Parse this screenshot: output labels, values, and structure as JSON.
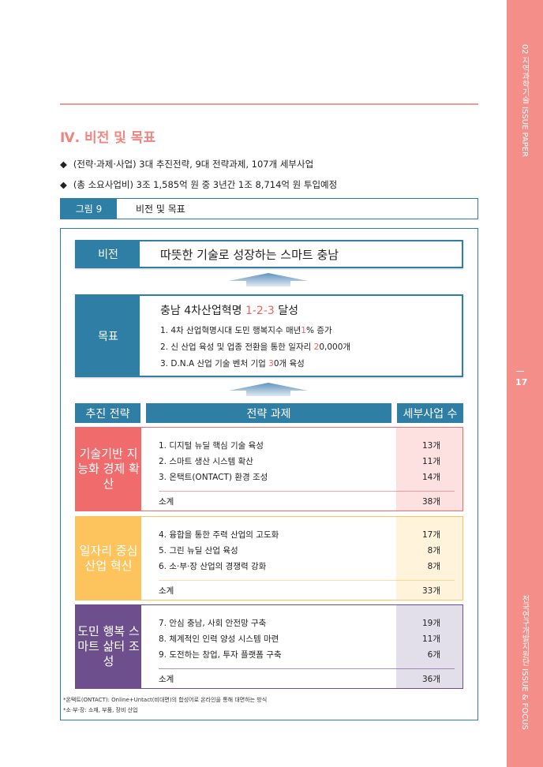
{
  "sidebar": {
    "top": "02 지역과학기술 ISSUE PAPER",
    "page": "17",
    "bottom": "전국연구개발지원단 ISSUE & FOCUS",
    "color": "#f38e88"
  },
  "section_title": "Ⅳ. 비전 및 목표",
  "bullets": [
    "(전략·과제·사업) 3대 추진전략, 9대 전략과제, 107개 세부사업",
    "(총 소요사업비) 3조 1,585억 원 중 3년간 1조 8,714억 원 투입예정"
  ],
  "figure": {
    "label": "그림 9",
    "title": "비전 및 목표"
  },
  "vision": {
    "label": "비전",
    "text": "따뜻한 기술로 성장하는 스마트 충남"
  },
  "goal": {
    "label": "목표",
    "headline_pre": "충남 4차산업혁명 ",
    "headline_red": "1-2-3",
    "headline_post": " 달성",
    "items": [
      {
        "pre": "1. 4차 산업혁명시대 도민 행복지수 매년",
        "red": "1",
        "post": "% 증가"
      },
      {
        "pre": "2. 신 산업 육성 및 업종 전환을 통한 일자리 ",
        "red": "2",
        "post": "0,000개"
      },
      {
        "pre": "3. D.N.A 산업 기술 벤처 기업 ",
        "red": "3",
        "post": "0개 육성"
      }
    ]
  },
  "headers": {
    "strategy": "추진 전략",
    "tasks": "전략 과제",
    "count": "세부사업 수"
  },
  "groups": [
    {
      "label": "기술기반 지능화 경제 확산",
      "color": "#f06b6b",
      "count_bg": "#fde0e0",
      "tasks": [
        [
          "1. 디지털 뉴딜 핵심 기술 육성",
          "13개"
        ],
        [
          "2. 스마트 생산 시스템 확산",
          "11개"
        ],
        [
          "3. 온택트(ONTACT) 환경 조성",
          "14개"
        ]
      ],
      "subtotal_label": "소계",
      "subtotal": "38개"
    },
    {
      "label": "일자리 중심 산업 혁신",
      "color": "#fdc45e",
      "count_bg": "#fff3dc",
      "tasks": [
        [
          "4. 융합을 통한 주력 산업의 고도화",
          "17개"
        ],
        [
          "5. 그린 뉴딜 산업 육성",
          "8개"
        ],
        [
          "6. 소·부·장 산업의 경쟁력 강화",
          "8개"
        ]
      ],
      "subtotal_label": "소계",
      "subtotal": "33개"
    },
    {
      "label": "도민 행복 스마트 삶터 조성",
      "color": "#6c4f8c",
      "count_bg": "#e3dfea",
      "tasks": [
        [
          "7. 안심 충남, 사회 안전망 구축",
          "19개"
        ],
        [
          "8. 체계적인 인력 양성 시스템 마련",
          "11개"
        ],
        [
          "9. 도전하는 창업, 투자 플랫폼 구축",
          "6개"
        ]
      ],
      "subtotal_label": "소계",
      "subtotal": "36개"
    }
  ],
  "footnotes": [
    "*온택트(ONTACT): Online+Untact(비대면)의 합성어로 온라인을 통해 대면하는 방식",
    "*소·부·장: 소재, 부품, 장비 산업"
  ]
}
